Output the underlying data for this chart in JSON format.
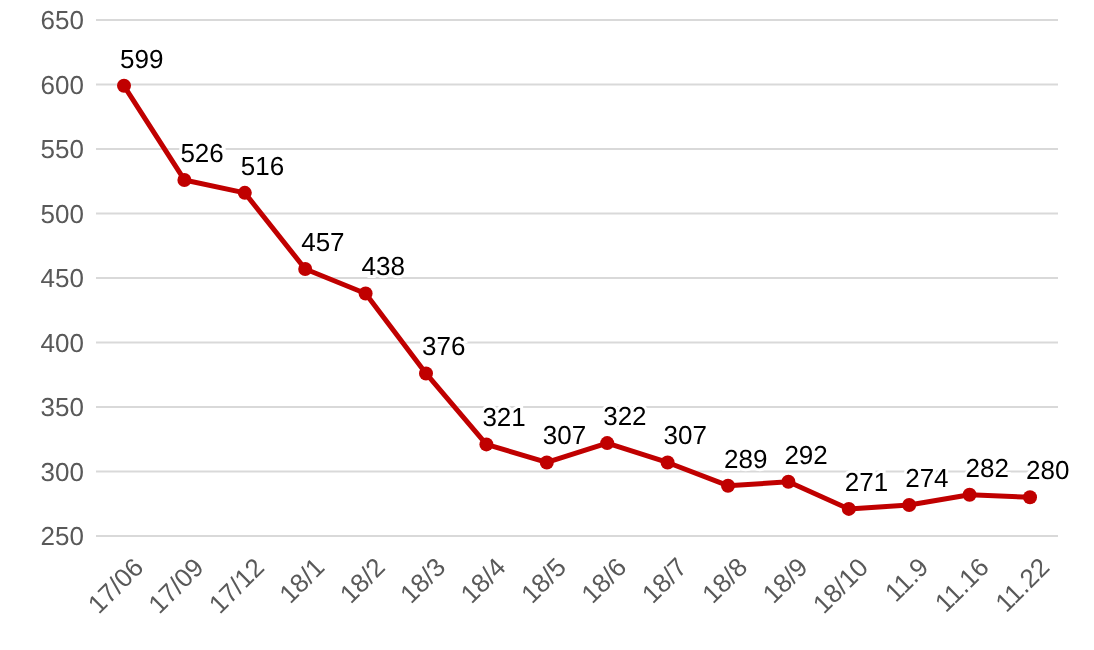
{
  "chart_data": {
    "type": "line",
    "categories": [
      "17/06",
      "17/09",
      "17/12",
      "18/1",
      "18/2",
      "18/3",
      "18/4",
      "18/5",
      "18/6",
      "18/7",
      "18/8",
      "18/9",
      "18/10",
      "11.9",
      "11.16",
      "11.22"
    ],
    "series": [
      {
        "color": "#c00000",
        "values": [
          599,
          526,
          516,
          457,
          438,
          376,
          321,
          307,
          322,
          307,
          289,
          292,
          271,
          274,
          282,
          280
        ]
      }
    ],
    "ylim": [
      250,
      650
    ],
    "yticks": [
      250,
      300,
      350,
      400,
      450,
      500,
      550,
      600,
      650
    ],
    "grid": "y",
    "marker": "circle",
    "line_style": "solid",
    "data_labels": true
  }
}
